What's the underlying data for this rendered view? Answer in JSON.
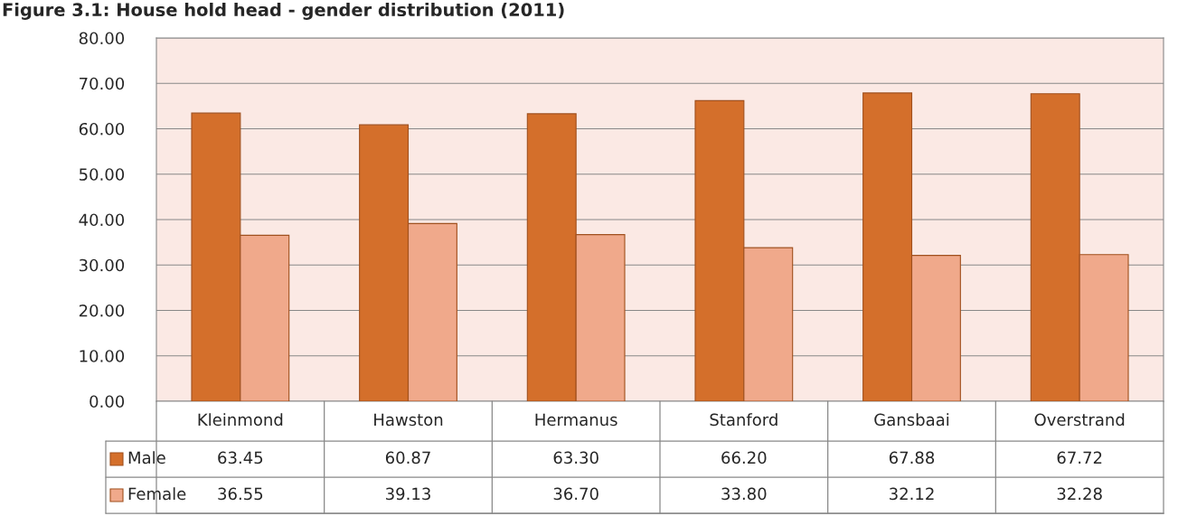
{
  "chart_data": {
    "type": "bar",
    "title": "Figure 3.1: House hold head - gender distribution (2011)",
    "categories": [
      "Kleinmond",
      "Hawston",
      "Hermanus",
      "Stanford",
      "Gansbaai",
      "Overstrand"
    ],
    "series": [
      {
        "name": "Male",
        "color": "#d46f2b",
        "values": [
          63.45,
          60.87,
          63.3,
          66.2,
          67.88,
          67.72
        ],
        "value_labels": [
          "63.45",
          "60.87",
          "63.30",
          "66.20",
          "67.88",
          "67.72"
        ]
      },
      {
        "name": "Female",
        "color": "#f0a98b",
        "values": [
          36.55,
          39.13,
          36.7,
          33.8,
          32.12,
          32.28
        ],
        "value_labels": [
          "36.55",
          "39.13",
          "36.70",
          "33.80",
          "32.12",
          "32.28"
        ]
      }
    ],
    "ylim": [
      0,
      80
    ],
    "yticks": [
      {
        "value": 0,
        "label": "0.00"
      },
      {
        "value": 10,
        "label": "10.00"
      },
      {
        "value": 20,
        "label": "20.00"
      },
      {
        "value": 30,
        "label": "30.00"
      },
      {
        "value": 40,
        "label": "40.00"
      },
      {
        "value": 50,
        "label": "50.00"
      },
      {
        "value": 60,
        "label": "60.00"
      },
      {
        "value": 70,
        "label": "70.00"
      },
      {
        "value": 80,
        "label": "80.00"
      }
    ],
    "grid": "y",
    "legend": "bottom"
  }
}
